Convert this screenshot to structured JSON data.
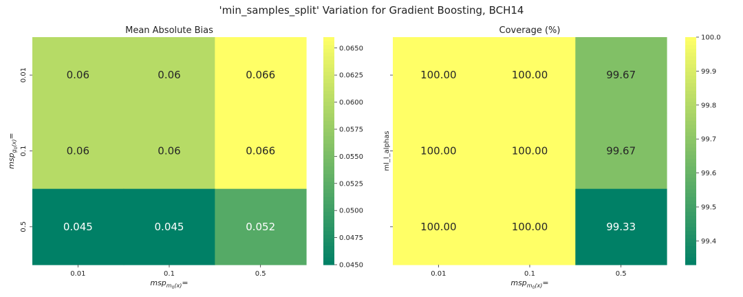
{
  "figure": {
    "title": "'min_samples_split' Variation for Gradient Boosting, BCH14"
  },
  "chart_data": [
    {
      "type": "heatmap",
      "title": "Mean Absolute Bias",
      "xlabel": "msp_m0(x)=",
      "ylabel": "msp_g0(x)=",
      "xlabel_parts": {
        "base": "msp",
        "sub": "m",
        "subsub": "0",
        "after": "(x)",
        "tail": "="
      },
      "ylabel_parts": {
        "base": "msp",
        "sub": "g",
        "subsub": "0",
        "after": "(x)",
        "tail": "="
      },
      "x_categories": [
        "0.01",
        "0.1",
        "0.5"
      ],
      "y_categories": [
        "0.01",
        "0.1",
        "0.5"
      ],
      "values": [
        [
          0.06,
          0.06,
          0.066
        ],
        [
          0.06,
          0.06,
          0.066
        ],
        [
          0.045,
          0.045,
          0.052
        ]
      ],
      "labels": [
        [
          "0.06",
          "0.06",
          "0.066"
        ],
        [
          "0.06",
          "0.06",
          "0.066"
        ],
        [
          "0.045",
          "0.045",
          "0.052"
        ]
      ],
      "colorscale": "summer",
      "vmin": 0.045,
      "vmax": 0.066,
      "colorbar_ticks": [
        "0.0450",
        "0.0475",
        "0.0500",
        "0.0525",
        "0.0550",
        "0.0575",
        "0.0600",
        "0.0625",
        "0.0650"
      ]
    },
    {
      "type": "heatmap",
      "title": "Coverage (%)",
      "xlabel": "msp_m0(x)=",
      "ylabel": "ml_l_alphas",
      "xlabel_parts": {
        "base": "msp",
        "sub": "m",
        "subsub": "0",
        "after": "(x)",
        "tail": "="
      },
      "x_categories": [
        "0.01",
        "0.1",
        "0.5"
      ],
      "y_categories": [
        "",
        "",
        ""
      ],
      "values": [
        [
          100.0,
          100.0,
          99.67
        ],
        [
          100.0,
          100.0,
          99.67
        ],
        [
          100.0,
          100.0,
          99.33
        ]
      ],
      "labels": [
        [
          "100.00",
          "100.00",
          "99.67"
        ],
        [
          "100.00",
          "100.00",
          "99.67"
        ],
        [
          "100.00",
          "100.00",
          "99.33"
        ]
      ],
      "colorscale": "summer",
      "vmin": 99.33,
      "vmax": 100.0,
      "colorbar_ticks": [
        "99.4",
        "99.5",
        "99.6",
        "99.7",
        "99.8",
        "99.9",
        "100.0"
      ]
    }
  ]
}
